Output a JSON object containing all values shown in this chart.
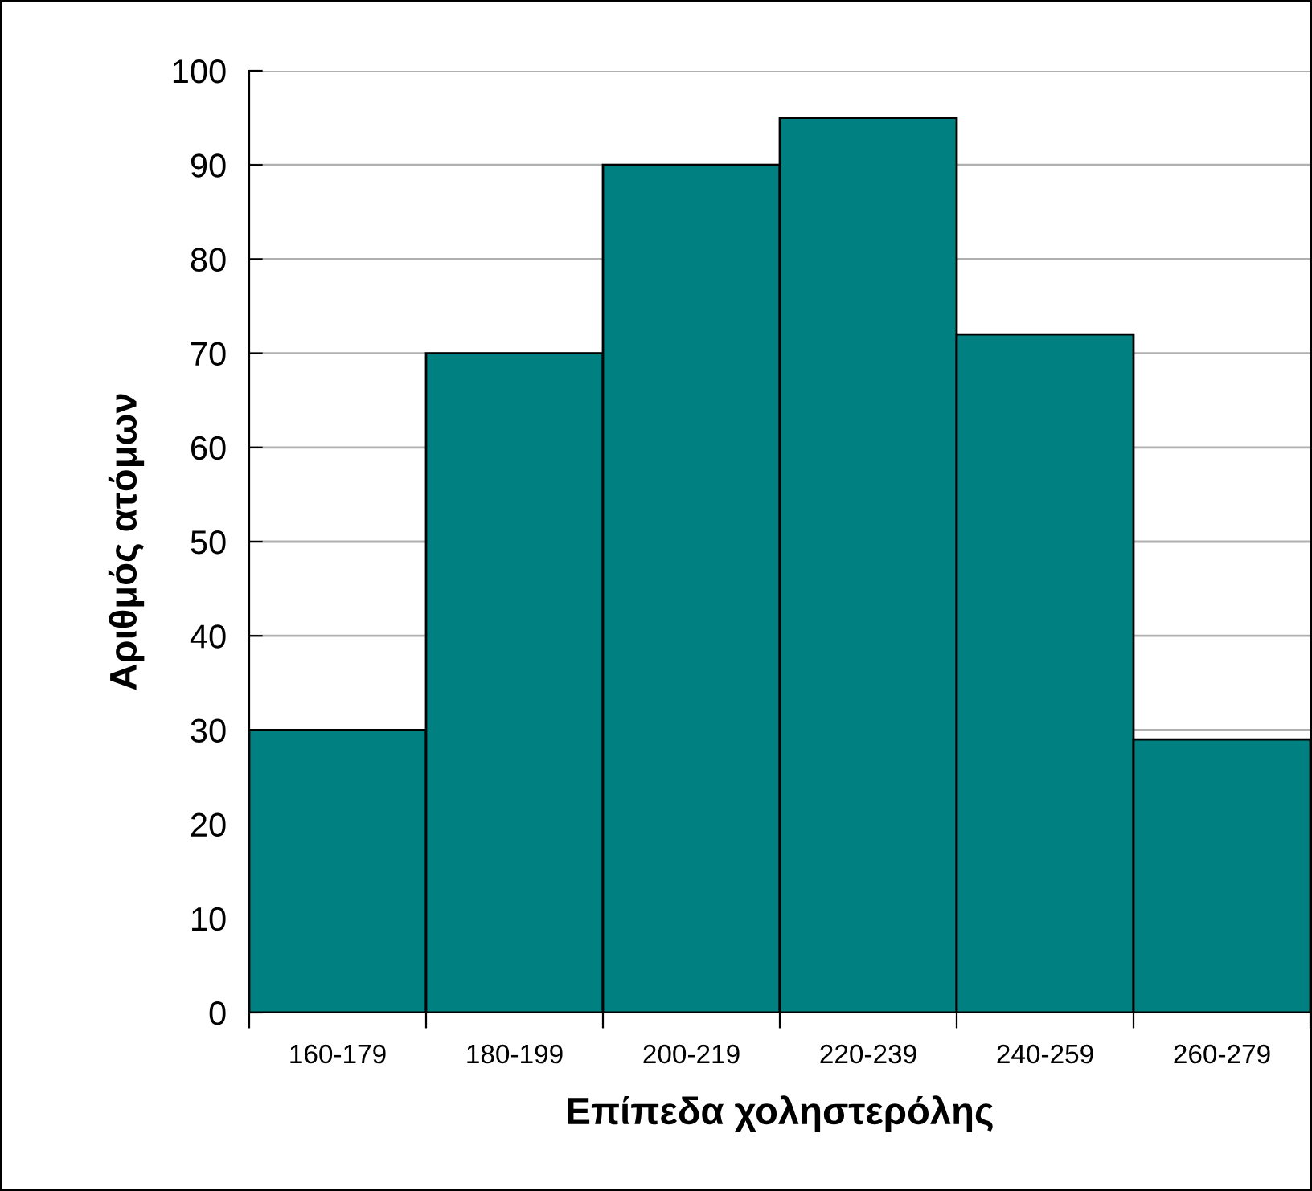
{
  "chart_data": {
    "type": "bar",
    "xlabel": "Επίπεδα χοληστερόλης",
    "ylabel": "Αριθμός ατόμων",
    "categories": [
      "160-179",
      "180-199",
      "200-219",
      "220-239",
      "240-259",
      "260-279"
    ],
    "values": [
      30,
      70,
      90,
      95,
      72,
      29
    ],
    "color": "#008080",
    "ylim": [
      0,
      100
    ],
    "yticks": [
      0,
      10,
      20,
      30,
      40,
      50,
      60,
      70,
      80,
      90,
      100
    ],
    "grid": "y",
    "legend": false
  }
}
